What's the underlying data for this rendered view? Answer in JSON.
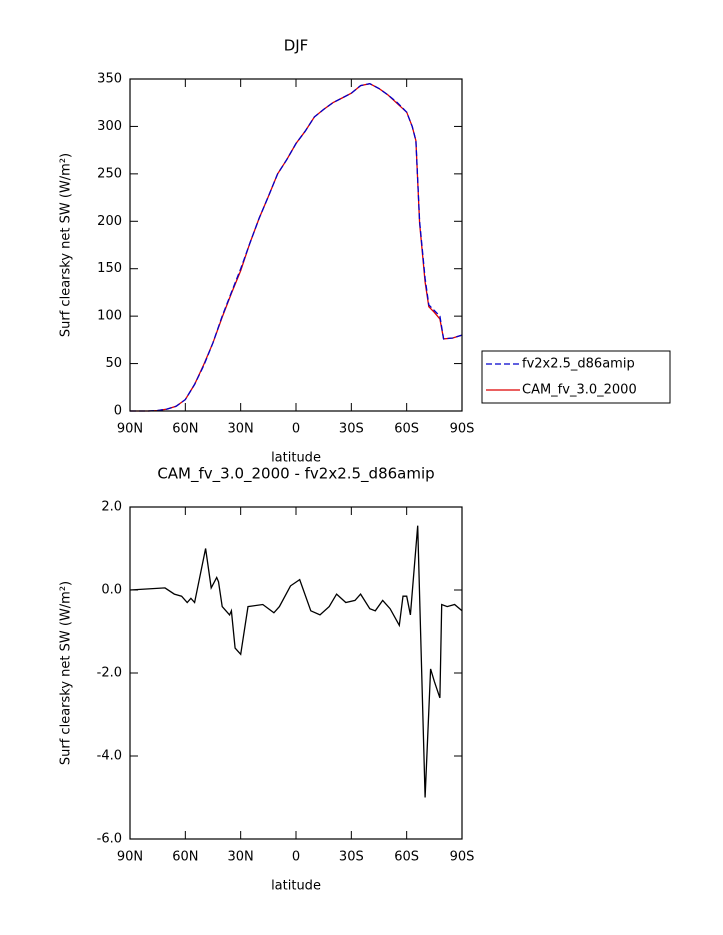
{
  "chart_data": [
    {
      "type": "line",
      "title": "DJF",
      "xlabel": "latitude",
      "ylabel": "Surf clearsky net SW (W/m²)",
      "x": [
        90,
        85,
        80,
        75,
        70,
        65,
        60,
        55,
        50,
        45,
        40,
        35,
        30,
        25,
        20,
        15,
        10,
        5,
        0,
        -5,
        -10,
        -15,
        -20,
        -25,
        -30,
        -35,
        -40,
        -45,
        -50,
        -55,
        -60,
        -63,
        -65,
        -67,
        -70,
        -72,
        -75,
        -78,
        -80,
        -85,
        -90
      ],
      "series": [
        {
          "name": "fv2x2.5_d86amip",
          "color": "#0000cc",
          "dash": true,
          "values": [
            0,
            0,
            0,
            0.5,
            2,
            5,
            12,
            28,
            48,
            72,
            100,
            125,
            150,
            177,
            203,
            226,
            250,
            265,
            282,
            295,
            310,
            318,
            325,
            330,
            335,
            343,
            345,
            340,
            333,
            325,
            315,
            300,
            285,
            200,
            140,
            112,
            106,
            100,
            76,
            77,
            80
          ]
        },
        {
          "name": "CAM_fv_3.0_2000",
          "color": "#dd0000",
          "dash": false,
          "values": [
            0,
            0,
            0,
            0.5,
            2,
            5,
            12,
            28,
            49,
            72,
            99,
            124,
            148,
            177,
            203,
            226,
            250,
            265,
            282,
            295,
            310,
            318,
            325,
            330,
            335,
            343,
            345,
            340,
            333,
            324,
            315,
            300,
            285,
            198,
            136,
            110,
            104,
            97,
            76,
            77,
            80
          ]
        }
      ],
      "xlim": [
        90,
        -90
      ],
      "xticks": [
        {
          "value": 90,
          "label": "90N"
        },
        {
          "value": 60,
          "label": "60N"
        },
        {
          "value": 30,
          "label": "30N"
        },
        0,
        {
          "value": -30,
          "label": "30S"
        },
        {
          "value": -60,
          "label": "60S"
        },
        {
          "value": -90,
          "label": "90S"
        }
      ],
      "ylim": [
        0,
        350
      ],
      "yticks": [
        0,
        50,
        100,
        150,
        200,
        250,
        300,
        350
      ],
      "legend": "right"
    },
    {
      "type": "line",
      "title": "CAM_fv_3.0_2000 - fv2x2.5_d86amip",
      "xlabel": "latitude",
      "ylabel": "Surf clearsky net SW (W/m²)",
      "x": [
        90,
        71,
        66,
        62,
        59,
        57,
        55,
        49,
        46,
        43,
        42,
        40,
        36,
        35,
        33,
        30,
        26,
        18,
        12,
        9,
        3,
        -2,
        -8,
        -13,
        -18,
        -22,
        -27,
        -32,
        -35,
        -40,
        -43,
        -47,
        -51,
        -56,
        -58,
        -60,
        -62,
        -66,
        -70,
        -73,
        -75,
        -78,
        -79,
        -82,
        -86,
        -90
      ],
      "values": [
        0,
        0.05,
        -0.1,
        -0.15,
        -0.3,
        -0.2,
        -0.3,
        1.0,
        0.05,
        0.3,
        0.2,
        -0.4,
        -0.6,
        -0.5,
        -1.4,
        -1.55,
        -0.4,
        -0.35,
        -0.55,
        -0.4,
        0.1,
        0.25,
        -0.5,
        -0.6,
        -0.4,
        -0.1,
        -0.3,
        -0.25,
        -0.1,
        -0.45,
        -0.5,
        -0.25,
        -0.45,
        -0.85,
        -0.15,
        -0.15,
        -0.6,
        1.55,
        -5.0,
        -1.9,
        -2.2,
        -2.6,
        -0.35,
        -0.4,
        -0.35,
        -0.5
      ],
      "color": "#000000",
      "xlim": [
        90,
        -90
      ],
      "xticks": [
        {
          "value": 90,
          "label": "90N"
        },
        {
          "value": 60,
          "label": "60N"
        },
        {
          "value": 30,
          "label": "30N"
        },
        0,
        {
          "value": -30,
          "label": "30S"
        },
        {
          "value": -60,
          "label": "60S"
        },
        {
          "value": -90,
          "label": "90S"
        }
      ],
      "ylim": [
        -6,
        2
      ],
      "yticks": [
        {
          "value": -6,
          "label": "-6.0"
        },
        {
          "value": -4,
          "label": "-4.0"
        },
        {
          "value": -2,
          "label": "-2.0"
        },
        {
          "value": 0,
          "label": "0.0"
        },
        {
          "value": 2,
          "label": "2.0"
        }
      ]
    }
  ]
}
